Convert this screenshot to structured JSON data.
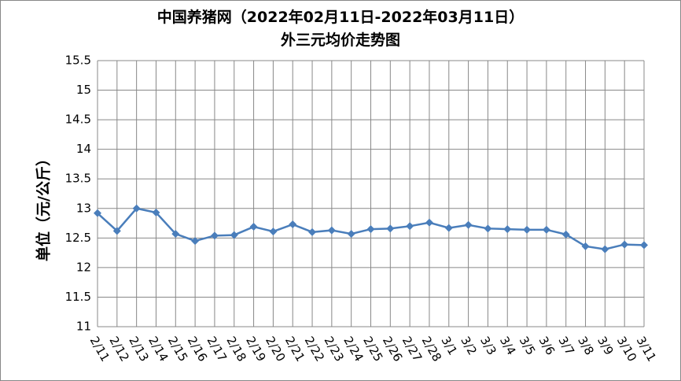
{
  "chart_data": {
    "type": "line",
    "title": "中国养猪网（2022年02月11日-2022年03月11日）",
    "subtitle": "外三元均价走势图",
    "y_label": "单位（元/公斤）",
    "categories": [
      "2/11",
      "2/12",
      "2/13",
      "2/14",
      "2/15",
      "2/16",
      "2/17",
      "2/18",
      "2/19",
      "2/20",
      "2/21",
      "2/22",
      "2/23",
      "2/24",
      "2/25",
      "2/26",
      "2/27",
      "2/28",
      "3/1",
      "3/2",
      "3/3",
      "3/4",
      "3/5",
      "3/6",
      "3/7",
      "3/8",
      "3/9",
      "3/10",
      "3/11"
    ],
    "series": [
      {
        "color": "#4a7ebb",
        "values": [
          12.92,
          12.62,
          13.0,
          12.93,
          12.57,
          12.45,
          12.54,
          12.55,
          12.69,
          12.61,
          12.73,
          12.6,
          12.63,
          12.57,
          12.65,
          12.66,
          12.7,
          12.76,
          12.67,
          12.72,
          12.66,
          12.65,
          12.64,
          12.64,
          12.56,
          12.36,
          12.31,
          12.39,
          12.38
        ]
      }
    ],
    "ylim": [
      11,
      15.5
    ],
    "yticks": [
      11,
      11.5,
      12,
      12.5,
      13,
      13.5,
      14,
      14.5,
      15,
      15.5
    ],
    "grid": true
  }
}
